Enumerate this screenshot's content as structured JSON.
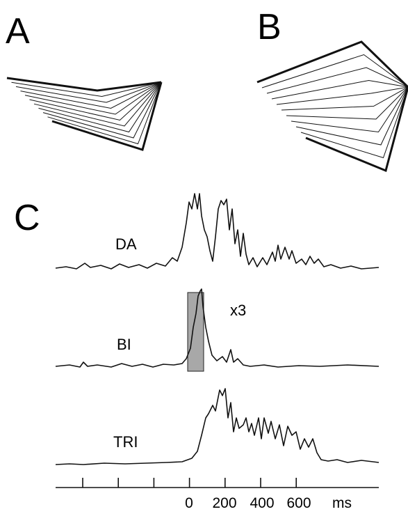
{
  "panels": {
    "a": "A",
    "b": "B",
    "c": "C"
  },
  "traces": {
    "da": "DA",
    "bi": "BI",
    "tri": "TRI"
  },
  "scale_note": "x3",
  "time_axis": {
    "tick_labels": [
      "0",
      "200",
      "400",
      "600"
    ],
    "unit": "ms"
  }
}
